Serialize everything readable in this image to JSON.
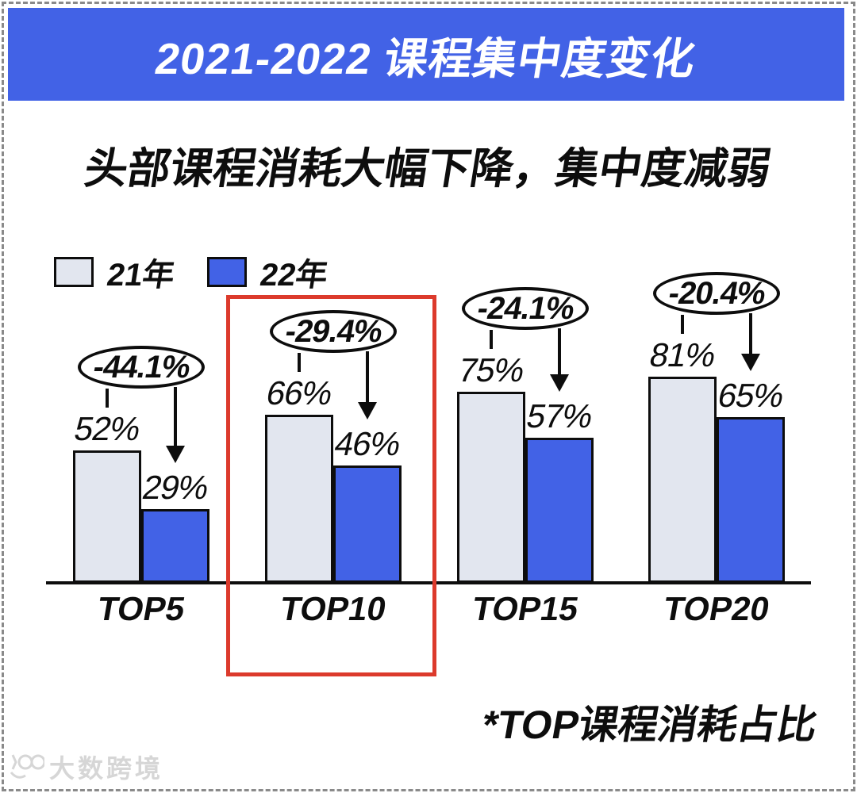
{
  "header": {
    "title": "2021-2022 课程集中度变化"
  },
  "subtitle": "头部课程消耗大幅下降，集中度减弱",
  "legend": {
    "items": [
      {
        "label": "21年",
        "color": "#E2E6EF"
      },
      {
        "label": "22年",
        "color": "#4262E6"
      }
    ]
  },
  "chart_data": {
    "type": "bar",
    "title": "2021-2022 课程集中度变化",
    "subtitle": "头部课程消耗大幅下降，集中度减弱",
    "categories": [
      "TOP5",
      "TOP10",
      "TOP15",
      "TOP20"
    ],
    "series": [
      {
        "name": "21年",
        "color": "#E2E6EF",
        "values": [
          52,
          66,
          75,
          81
        ]
      },
      {
        "name": "22年",
        "color": "#4262E6",
        "values": [
          29,
          46,
          57,
          65
        ]
      }
    ],
    "value_suffix": "%",
    "change_annotations": [
      "-44.1%",
      "-29.4%",
      "-24.1%",
      "-20.4%"
    ],
    "highlighted_category": "TOP10",
    "ylim": [
      0,
      100
    ],
    "grid": false,
    "legend_position": "top-left",
    "footnote": "*TOP课程消耗占比"
  },
  "footnote": "*TOP课程消耗占比",
  "watermark": {
    "text": "大数跨境"
  },
  "colors": {
    "banner": "#4262E6",
    "bar_2021": "#E2E6EF",
    "bar_2022": "#4262E6",
    "highlight_box": "#DC3A2C",
    "outline": "#0D0D0D",
    "frame_dash": "#8A8A8A"
  }
}
